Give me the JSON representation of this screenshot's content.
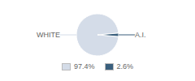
{
  "chart_data": {
    "type": "pie",
    "categories": [
      "WHITE",
      "A.I."
    ],
    "values": [
      97.4,
      2.6
    ],
    "value_labels": [
      "97.4%",
      "2.6%"
    ],
    "colors": [
      "#d4dce8",
      "#3a5f7d"
    ],
    "legend": "bottom"
  }
}
